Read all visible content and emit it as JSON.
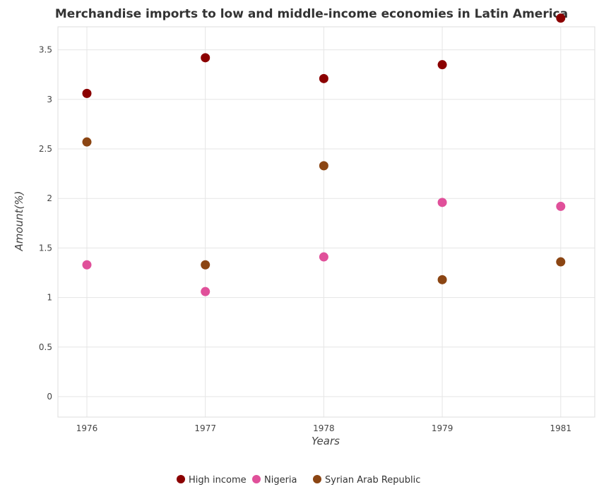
{
  "chart_data": {
    "type": "scatter",
    "title": "Merchandise imports to low and middle-income economies in Latin America",
    "xlabel": "Years",
    "ylabel": "Amount(%)",
    "categories": [
      "1976",
      "1977",
      "1978",
      "1979",
      "1981"
    ],
    "ylim": [
      0,
      4.0
    ],
    "yticks": [
      "0",
      "0.5",
      "1",
      "1.5",
      "2",
      "2.5",
      "3",
      "3.5"
    ],
    "grid": true,
    "legend_position": "bottom-center",
    "series": [
      {
        "name": "High income",
        "color": "#8b0000",
        "values": [
          3.06,
          3.42,
          3.21,
          3.35,
          3.82
        ]
      },
      {
        "name": "Nigeria",
        "color": "#e0509a",
        "values": [
          1.33,
          1.06,
          1.41,
          1.96,
          1.92
        ]
      },
      {
        "name": "Syrian Arab Republic",
        "color": "#8b4513",
        "values": [
          2.57,
          1.33,
          2.33,
          1.18,
          1.36
        ]
      }
    ]
  }
}
